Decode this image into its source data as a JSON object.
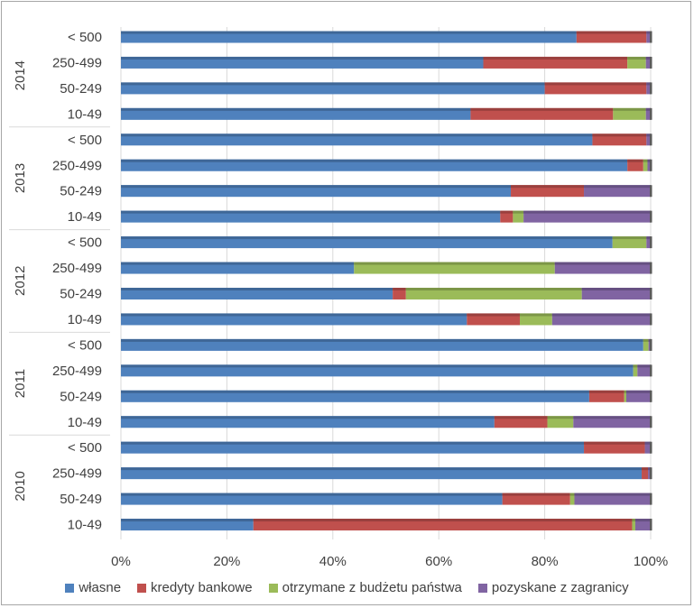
{
  "chart_data": {
    "type": "bar",
    "orientation": "horizontal",
    "stacked": "percent",
    "title": "",
    "xlabel": "",
    "ylabel": "",
    "xlim": [
      0,
      100
    ],
    "x_ticks": [
      "0%",
      "20%",
      "40%",
      "60%",
      "80%",
      "100%"
    ],
    "grid": true,
    "legend_position": "bottom",
    "groups": [
      {
        "year": "2014",
        "categories": [
          "< 500",
          "250-499",
          "50-249",
          "10-49"
        ]
      },
      {
        "year": "2013",
        "categories": [
          "< 500",
          "250-499",
          "50-249",
          "10-49"
        ]
      },
      {
        "year": "2012",
        "categories": [
          "< 500",
          "250-499",
          "50-249",
          "10-49"
        ]
      },
      {
        "year": "2011",
        "categories": [
          "< 500",
          "250-499",
          "50-249",
          "10-49"
        ]
      },
      {
        "year": "2010",
        "categories": [
          "< 500",
          "250-499",
          "50-249",
          "10-49"
        ]
      }
    ],
    "series": [
      {
        "name": "własne",
        "color": "#4f81bd",
        "values": [
          86,
          68.4,
          80,
          66,
          89,
          95.6,
          73.6,
          71.6,
          92.8,
          44,
          51.3,
          65.3,
          98.6,
          96.7,
          88.4,
          70.5,
          87.4,
          98.3,
          72,
          25
        ]
      },
      {
        "name": "kredyty bankowe",
        "color": "#c0504d",
        "values": [
          13.2,
          27.2,
          19.2,
          26.9,
          10.2,
          3,
          13.8,
          2.4,
          0,
          0,
          2.5,
          10,
          0,
          0,
          6.6,
          10,
          11.5,
          1.2,
          12.8,
          71.5
        ]
      },
      {
        "name": "otrzymane z budżetu państwa",
        "color": "#9bbb59",
        "values": [
          0,
          3.5,
          0,
          6.2,
          0,
          0.8,
          0,
          2,
          6.4,
          37.9,
          33.2,
          6.1,
          1,
          0.8,
          0.4,
          4.9,
          0,
          0,
          0.8,
          0.6
        ]
      },
      {
        "name": "pozyskane z zagranicy",
        "color": "#8064a2",
        "values": [
          0.8,
          0.9,
          0.8,
          0.9,
          0.8,
          0.6,
          12.6,
          24,
          0.8,
          18.1,
          13,
          18.6,
          0.4,
          2.5,
          4.6,
          14.6,
          1.1,
          0.5,
          14.4,
          2.9
        ]
      }
    ]
  }
}
